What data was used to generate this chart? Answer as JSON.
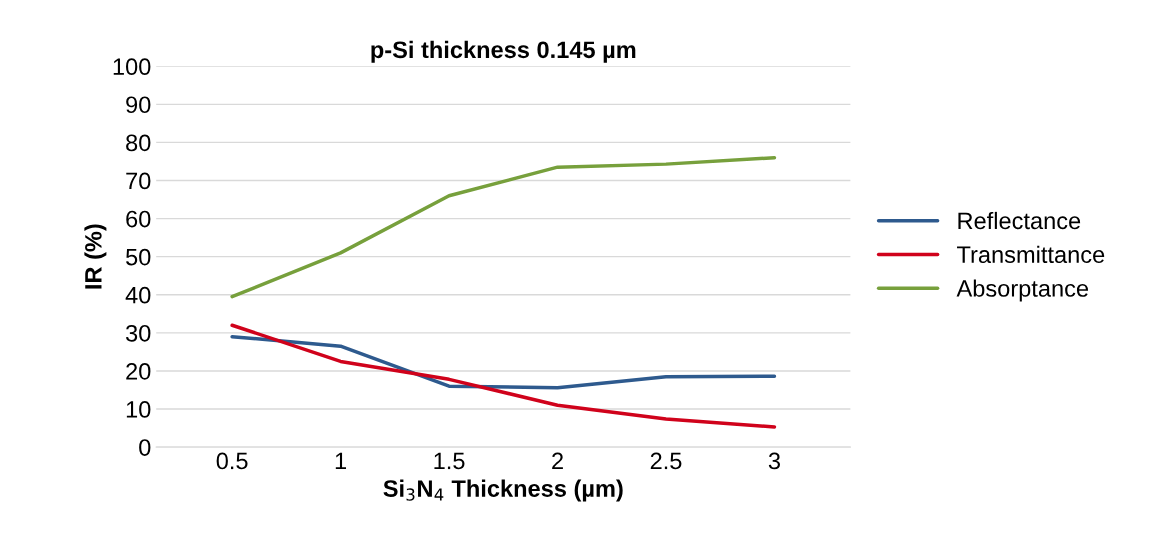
{
  "chart_data": {
    "type": "line",
    "title": "p-Si thickness 0.145 µm",
    "xlabel": "Si$_{3}$N$_{4}$ Thickness (µm)",
    "ylabel": "IR (%)",
    "categories": [
      "0.5",
      "1",
      "1.5",
      "2",
      "2.5",
      "3"
    ],
    "series": [
      {
        "name": "Reflectance",
        "color": "#2e5a8e",
        "values": [
          29,
          26.5,
          16,
          15.6,
          18.5,
          18.6
        ]
      },
      {
        "name": "Transmittance",
        "color": "#d0021b",
        "values": [
          32,
          22.5,
          17.8,
          11,
          7.4,
          5.3
        ]
      },
      {
        "name": "Absorptance",
        "color": "#77a03c",
        "values": [
          39.5,
          51,
          66,
          73.5,
          74.3,
          76
        ]
      }
    ],
    "ylim": [
      0,
      100
    ],
    "yticks": [
      0,
      10,
      20,
      30,
      40,
      50,
      60,
      70,
      80,
      90,
      100
    ],
    "grid": "y",
    "legend": "right",
    "marker": "none",
    "line_style": "solid"
  }
}
